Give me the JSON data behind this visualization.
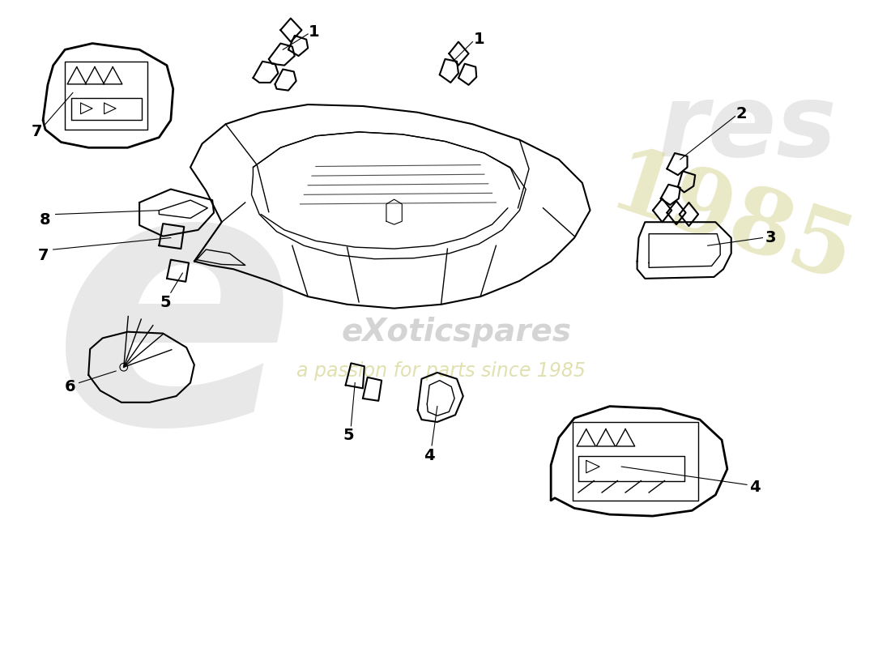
{
  "bg_color": "#ffffff",
  "line_color": "#000000",
  "fig_width": 11.0,
  "fig_height": 8.0,
  "watermark_text1": "eXoticspares",
  "watermark_text2": "a passion for parts since 1985"
}
